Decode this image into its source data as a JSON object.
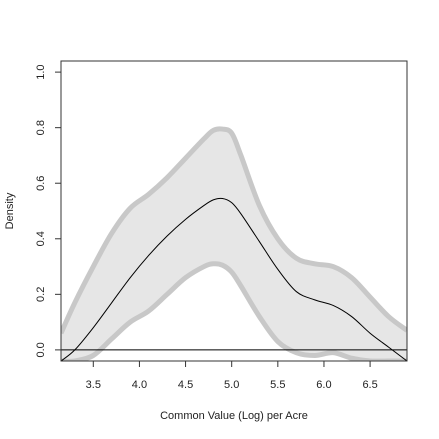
{
  "chart_data": {
    "type": "area",
    "title": "",
    "xlabel": "Common Value (Log) per Acre",
    "ylabel": "Density",
    "xlim": [
      3.15,
      6.9
    ],
    "ylim": [
      -0.04,
      1.04
    ],
    "x_ticks": [
      3.5,
      4.0,
      4.5,
      5.0,
      5.5,
      6.0,
      6.5
    ],
    "x_tick_labels": [
      "3.5",
      "4.0",
      "4.5",
      "5.0",
      "5.5",
      "6.0",
      "6.5"
    ],
    "y_ticks": [
      0.0,
      0.2,
      0.4,
      0.6,
      0.8,
      1.0
    ],
    "y_tick_labels": [
      "0.0",
      "0.2",
      "0.4",
      "0.6",
      "0.8",
      "1.0"
    ],
    "grid": false,
    "legend": "none",
    "baseline": 0,
    "colors": {
      "band_fill": "#e6e6e6",
      "band_edge": "#c8c8c8",
      "line": "#000000",
      "axis": "#333333"
    },
    "x": [
      3.15,
      3.3,
      3.5,
      3.7,
      3.9,
      4.1,
      4.3,
      4.5,
      4.7,
      4.8,
      4.9,
      5.0,
      5.1,
      5.3,
      5.5,
      5.7,
      5.9,
      6.1,
      6.3,
      6.5,
      6.7,
      6.9
    ],
    "series": [
      {
        "role": "estimate",
        "values": [
          -0.04,
          0.0,
          0.08,
          0.17,
          0.26,
          0.34,
          0.41,
          0.47,
          0.52,
          0.54,
          0.545,
          0.53,
          0.49,
          0.39,
          0.29,
          0.21,
          0.18,
          0.16,
          0.12,
          0.06,
          0.01,
          -0.04
        ]
      },
      {
        "role": "upper-bound",
        "values": [
          0.06,
          0.17,
          0.3,
          0.42,
          0.51,
          0.56,
          0.62,
          0.69,
          0.76,
          0.79,
          0.795,
          0.78,
          0.7,
          0.52,
          0.4,
          0.33,
          0.31,
          0.3,
          0.26,
          0.19,
          0.12,
          0.07
        ]
      },
      {
        "role": "lower-bound",
        "values": [
          -0.04,
          -0.04,
          -0.02,
          0.04,
          0.1,
          0.14,
          0.2,
          0.26,
          0.3,
          0.31,
          0.305,
          0.28,
          0.23,
          0.12,
          0.03,
          -0.01,
          -0.02,
          -0.01,
          -0.03,
          -0.04,
          -0.04,
          -0.04
        ]
      }
    ]
  }
}
